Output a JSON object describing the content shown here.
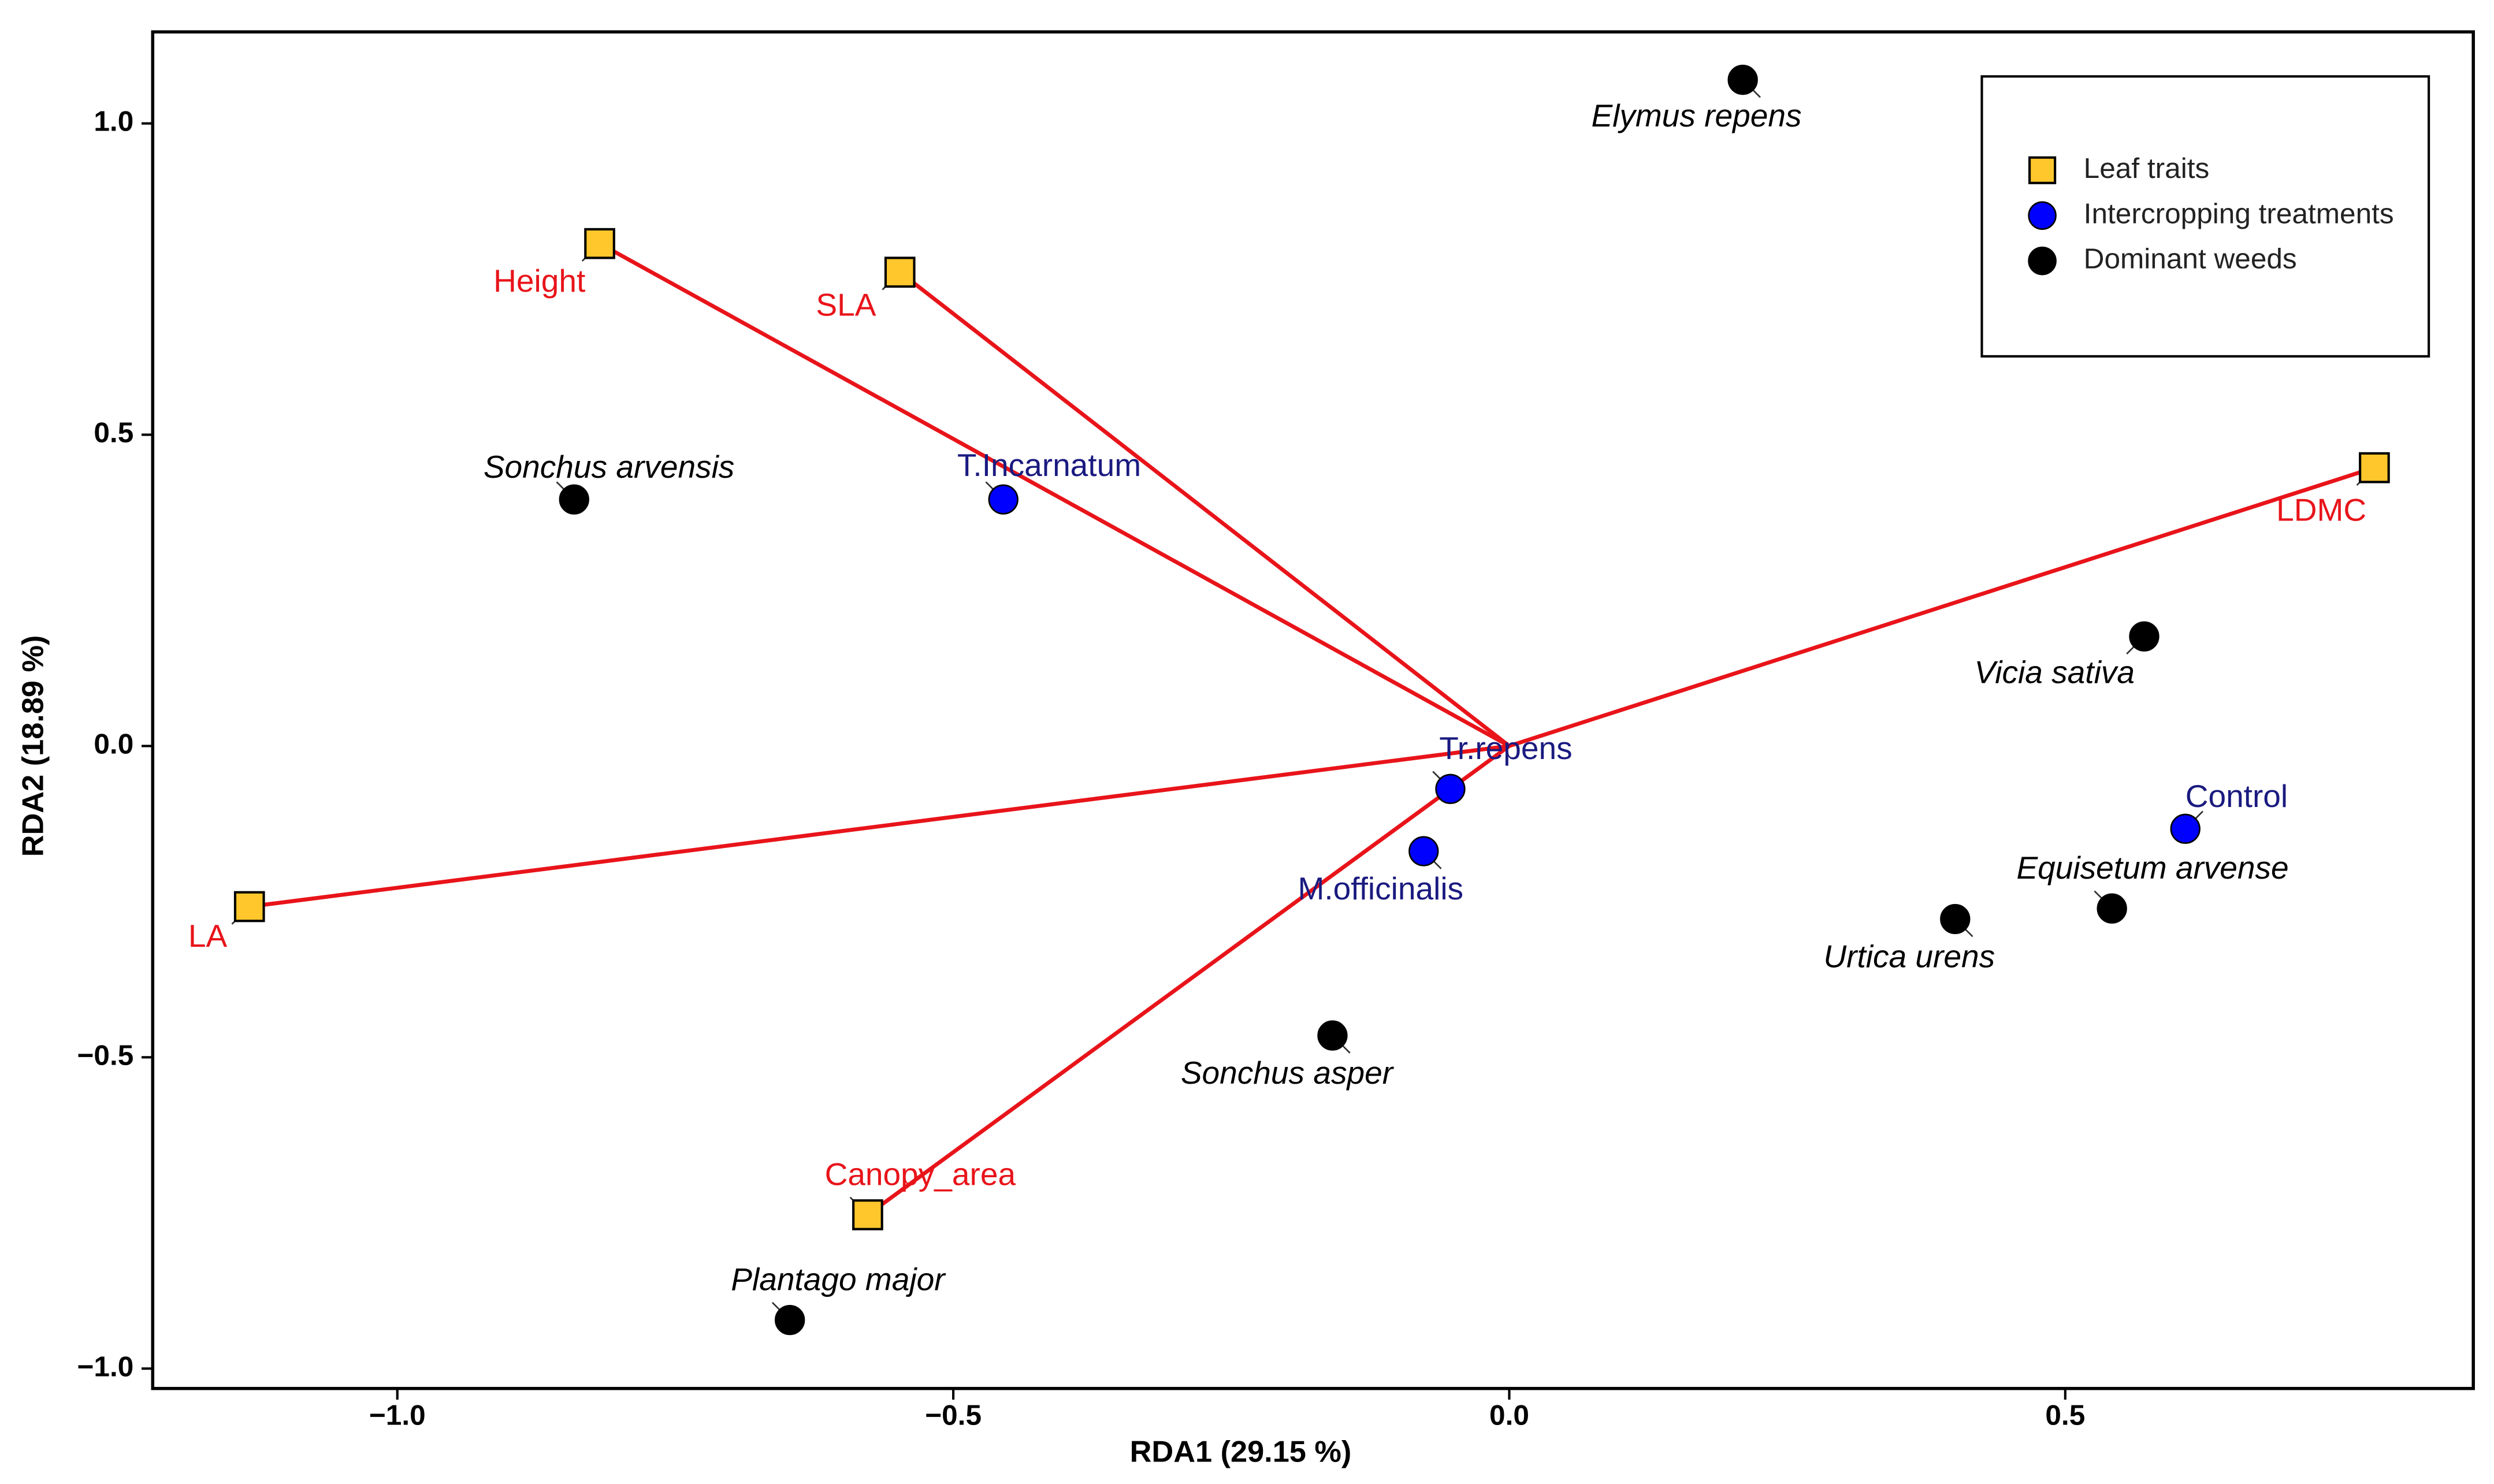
{
  "chart_data": {
    "type": "scatter",
    "x_label": "RDA1 (29.15 %)",
    "y_label": "RDA2 (18.89 %)",
    "xlim": [
      -1.22,
      0.867
    ],
    "ylim": [
      -1.032,
      1.147
    ],
    "xticks": [
      {
        "value": -1.0,
        "label": "−1.0"
      },
      {
        "value": -0.5,
        "label": "−0.5"
      },
      {
        "value": 0.0,
        "label": "0.0"
      },
      0.5
    ],
    "yticks": [
      {
        "value": -1.0,
        "label": "−1.0"
      },
      {
        "value": -0.5,
        "label": "−0.5"
      },
      {
        "value": 0.0,
        "label": "0.0"
      },
      0.5,
      {
        "value": 1.0,
        "label": "1.0"
      }
    ],
    "grid": false,
    "legend": "top right",
    "series": [
      {
        "name": "Leaf traits",
        "marker": "square",
        "color": "#ffc72c",
        "label_color": "#e8141a",
        "vector_color": "#e8141a",
        "labels": [
          "Height",
          "SLA",
          "LDMC",
          "LA",
          "Canopy_area"
        ],
        "x": [
          -0.818,
          -0.548,
          0.778,
          -1.133,
          -0.577
        ],
        "values": [
          0.807,
          0.761,
          0.447,
          -0.258,
          -0.753
        ]
      },
      {
        "name": "Intercropping treatments",
        "marker": "circle",
        "color": "#0000ff",
        "label_color": "#1a1a80",
        "labels": [
          "T.Incarnatum",
          "Tr.repens",
          "M.officinalis",
          "Control"
        ],
        "x": [
          -0.455,
          -0.053,
          -0.077,
          0.608
        ],
        "values": [
          0.396,
          -0.069,
          -0.169,
          -0.133
        ]
      },
      {
        "name": "Dominant weeds",
        "marker": "circle",
        "color": "#000000",
        "label_color": "#000000",
        "labels": [
          "Elymus repens",
          "Sonchus arvensis",
          "Vicia sativa",
          "Equisetum arvense",
          "Urtica urens",
          "Sonchus asper",
          "Plantago major"
        ],
        "x": [
          0.21,
          -0.841,
          0.571,
          0.542,
          0.401,
          -0.159,
          -0.647
        ],
        "values": [
          1.07,
          0.396,
          0.176,
          -0.261,
          -0.278,
          -0.465,
          -0.922
        ]
      }
    ]
  }
}
